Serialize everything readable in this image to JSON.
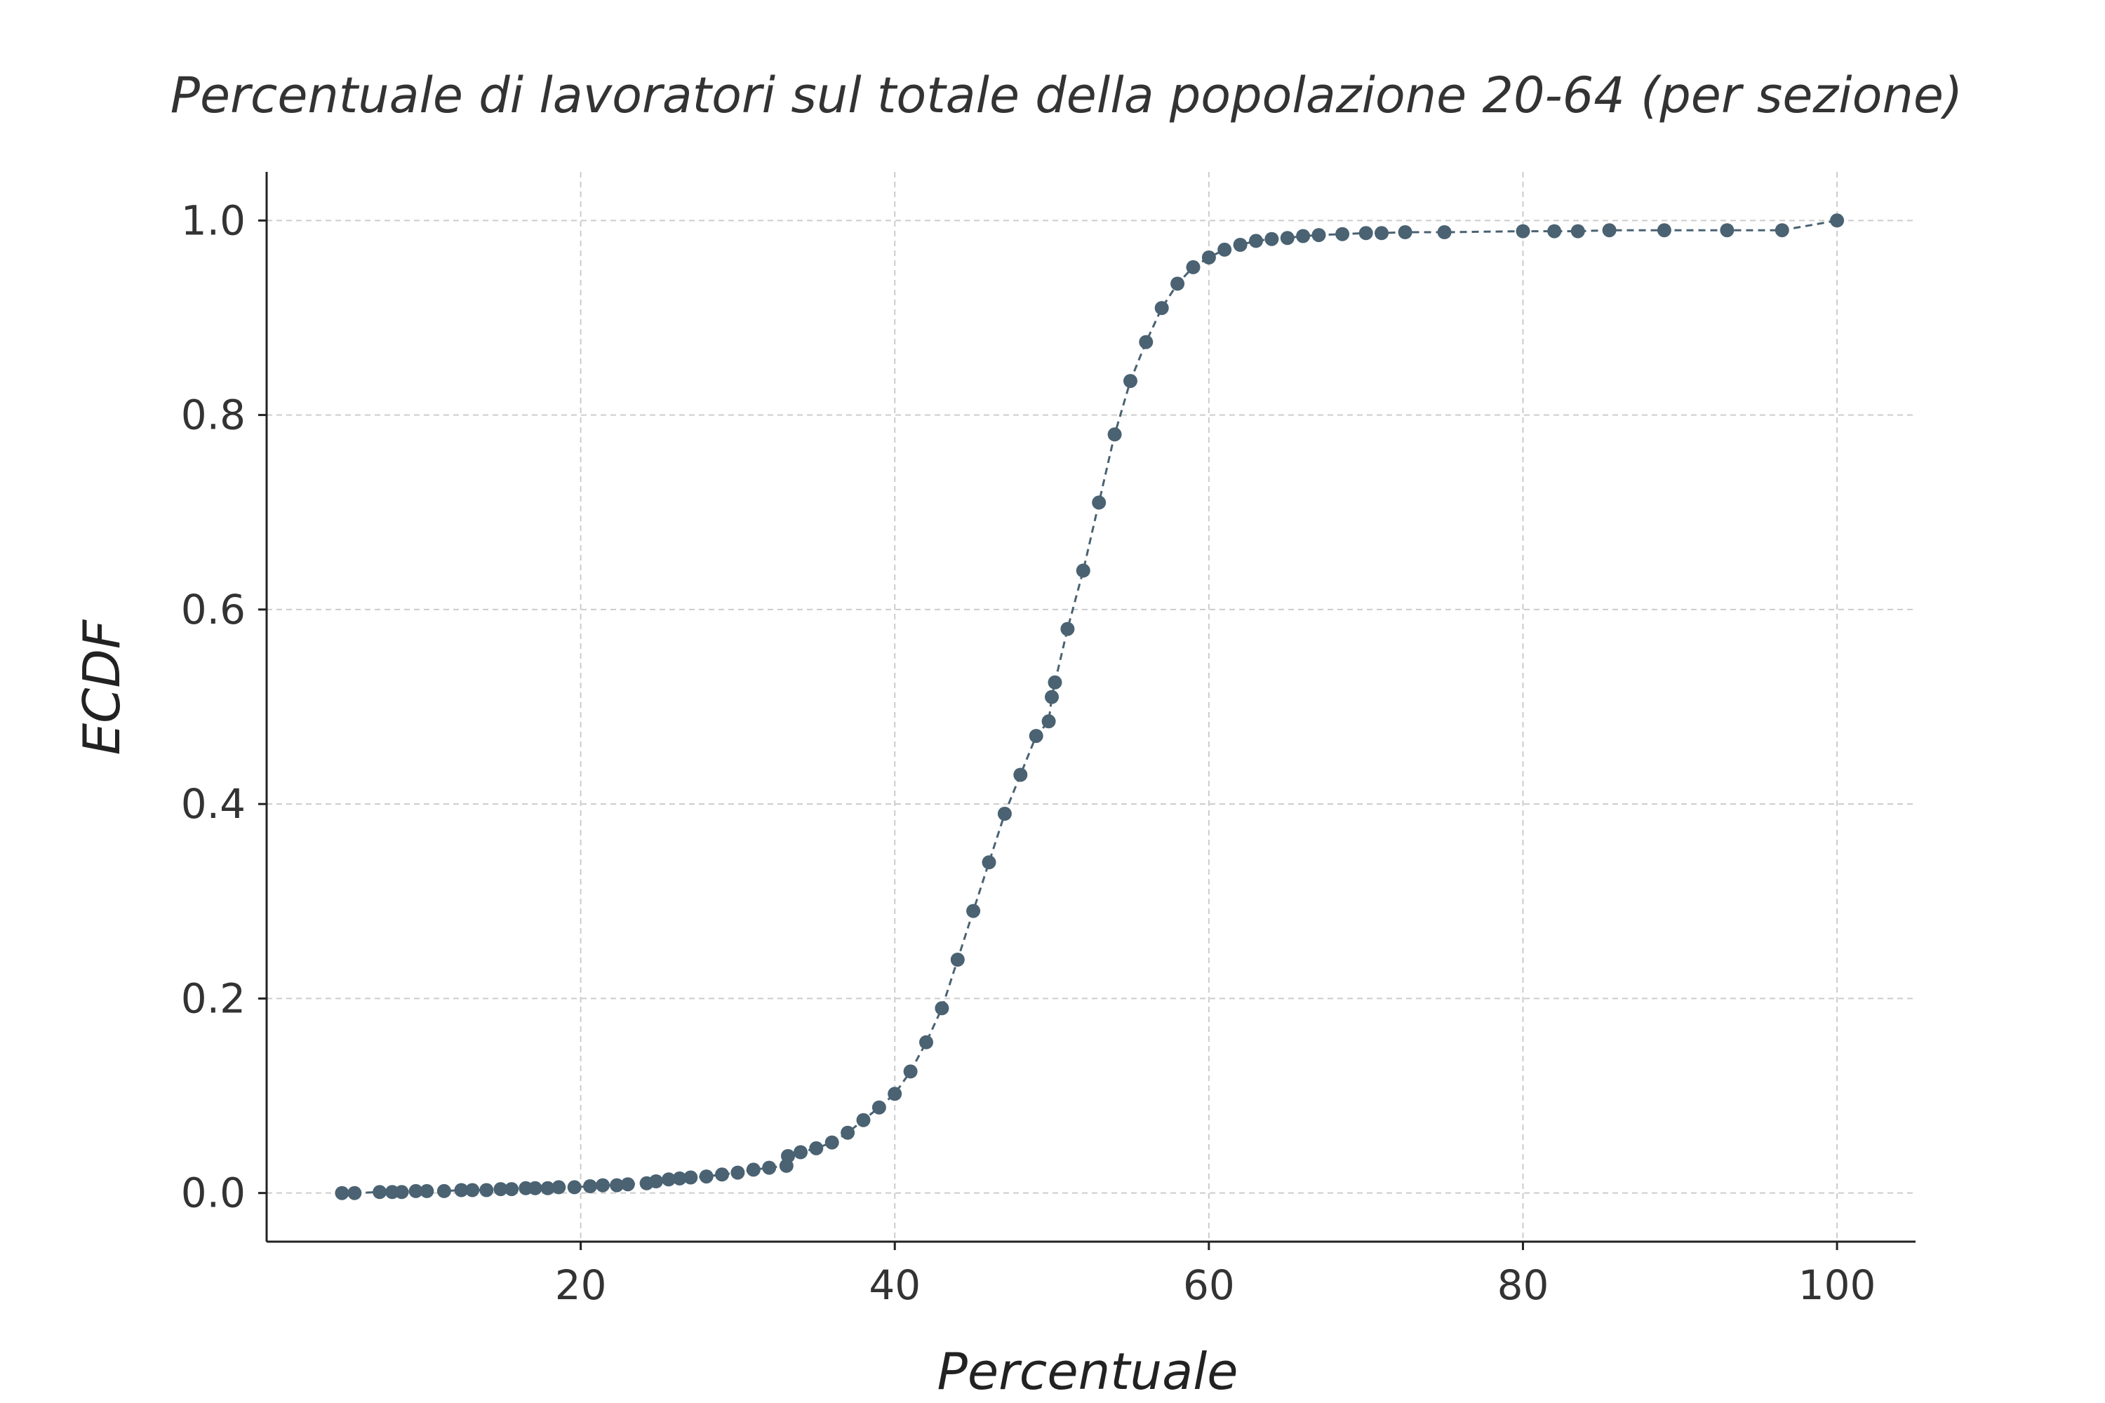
{
  "chart_data": {
    "type": "line",
    "title": "Percentuale di lavoratori sul totale della popolazione 20-64 (per sezione)",
    "xlabel": "Percentuale",
    "ylabel": "ECDF",
    "xlim": [
      0,
      105
    ],
    "ylim": [
      -0.05,
      1.05
    ],
    "grid": true,
    "marker_color": "#4a6272",
    "line_style": "dashed",
    "x_ticks": [
      20,
      40,
      60,
      80,
      100
    ],
    "x_tick_labels": [
      "20",
      "40",
      "60",
      "80",
      "100"
    ],
    "y_ticks": [
      0.0,
      0.2,
      0.4,
      0.6,
      0.8,
      1.0
    ],
    "y_tick_labels": [
      "0.0",
      "0.2",
      "0.4",
      "0.6",
      "0.8",
      "1.0"
    ],
    "series": [
      {
        "x": [
          4.8,
          5.6,
          7.2,
          8.0,
          8.6,
          9.5,
          10.2,
          11.3,
          12.4,
          13.1,
          14.0,
          14.9,
          15.6,
          16.5,
          17.1,
          17.9,
          18.6,
          19.6,
          20.6,
          21.4,
          22.3,
          23.0,
          24.2,
          24.8,
          25.6,
          26.3,
          27.0,
          28.0,
          29.0,
          30.0,
          31.0,
          32.0,
          33.1,
          33.2,
          34.0,
          35.0,
          36.0,
          37.0,
          38.0,
          39.0,
          40.0,
          41.0,
          42.0,
          43.0,
          44.0,
          45.0,
          46.0,
          47.0,
          48.0,
          49.0,
          49.8,
          50.0,
          50.2,
          51.0,
          52.0,
          53.0,
          54.0,
          55.0,
          56.0,
          57.0,
          58.0,
          59.0,
          60.0,
          61.0,
          62.0,
          63.0,
          64.0,
          65.0,
          66.0,
          67.0,
          68.5,
          70.0,
          71.0,
          72.5,
          75.0,
          80.0,
          82.0,
          83.5,
          85.5,
          89.0,
          93.0,
          96.5,
          100.0
        ],
        "y": [
          0.0,
          0.0,
          0.001,
          0.001,
          0.001,
          0.002,
          0.002,
          0.002,
          0.003,
          0.003,
          0.003,
          0.004,
          0.004,
          0.005,
          0.005,
          0.005,
          0.006,
          0.006,
          0.007,
          0.008,
          0.008,
          0.009,
          0.01,
          0.012,
          0.014,
          0.015,
          0.016,
          0.017,
          0.019,
          0.021,
          0.024,
          0.026,
          0.028,
          0.038,
          0.042,
          0.046,
          0.052,
          0.062,
          0.075,
          0.088,
          0.102,
          0.125,
          0.155,
          0.19,
          0.24,
          0.29,
          0.34,
          0.39,
          0.43,
          0.47,
          0.485,
          0.51,
          0.525,
          0.58,
          0.64,
          0.71,
          0.78,
          0.835,
          0.875,
          0.91,
          0.935,
          0.952,
          0.962,
          0.97,
          0.975,
          0.979,
          0.981,
          0.982,
          0.984,
          0.985,
          0.986,
          0.987,
          0.987,
          0.988,
          0.988,
          0.989,
          0.989,
          0.989,
          0.99,
          0.99,
          0.99,
          0.99,
          1.0
        ]
      }
    ]
  }
}
